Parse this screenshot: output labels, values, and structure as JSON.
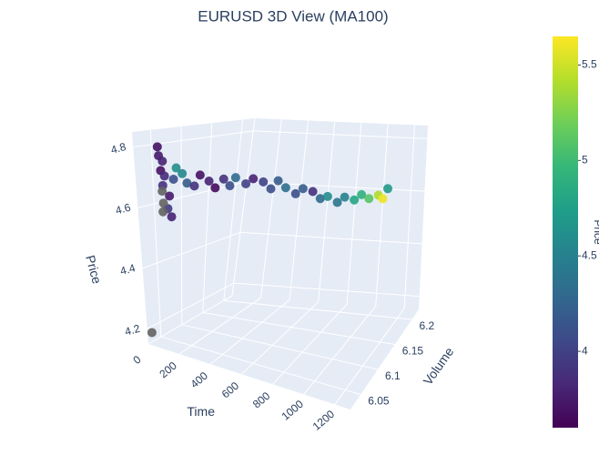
{
  "chart_data": {
    "type": "scatter3d",
    "title": "EURUSD 3D View (MA100)",
    "xlabel": "Time",
    "ylabel": "Volume",
    "zlabel": "Price",
    "xlim": [
      0,
      1300
    ],
    "xticks": [
      0,
      200,
      400,
      600,
      800,
      1000,
      1200
    ],
    "ylim": [
      6.02,
      6.22
    ],
    "yticks": [
      6.05,
      6.1,
      6.15,
      6.2
    ],
    "zlim": [
      4.15,
      4.85
    ],
    "zticks": [
      4.2,
      4.4,
      4.6,
      4.8
    ],
    "colorscale": "Viridis",
    "null_color": "#636363",
    "colorbar": {
      "title": "Price",
      "lim": [
        3.6,
        5.65
      ],
      "ticks": [
        4,
        4.5,
        5,
        5.5
      ]
    },
    "x": [
      0,
      5,
      10,
      15,
      20,
      25,
      30,
      35,
      40,
      60,
      80,
      100,
      130,
      160,
      200,
      240,
      280,
      320,
      360,
      400,
      450,
      500,
      550,
      600,
      650,
      700,
      750,
      800,
      850,
      900,
      950,
      1000,
      1050,
      1100,
      1150,
      1200,
      1250,
      1280,
      1300,
      20,
      25,
      20,
      0
    ],
    "y": [
      6.06,
      6.06,
      6.065,
      6.06,
      6.065,
      6.06,
      6.07,
      6.065,
      6.07,
      6.07,
      6.07,
      6.075,
      6.075,
      6.08,
      6.08,
      6.085,
      6.085,
      6.09,
      6.09,
      6.09,
      6.095,
      6.095,
      6.1,
      6.1,
      6.1,
      6.1,
      6.105,
      6.105,
      6.11,
      6.11,
      6.11,
      6.115,
      6.115,
      6.12,
      6.12,
      6.12,
      6.125,
      6.125,
      6.13,
      6.06,
      6.06,
      6.06,
      6.03
    ],
    "z": [
      4.79,
      4.76,
      4.74,
      4.71,
      4.69,
      4.66,
      4.62,
      4.58,
      4.55,
      4.68,
      4.72,
      4.7,
      4.67,
      4.66,
      4.7,
      4.68,
      4.66,
      4.69,
      4.67,
      4.7,
      4.68,
      4.7,
      4.69,
      4.67,
      4.7,
      4.68,
      4.66,
      4.68,
      4.67,
      4.65,
      4.66,
      4.64,
      4.66,
      4.65,
      4.67,
      4.66,
      4.67,
      4.66,
      4.69,
      4.64,
      4.6,
      4.57,
      4.18
    ],
    "color": [
      3.7,
      3.75,
      3.8,
      3.7,
      3.85,
      3.9,
      3.75,
      3.95,
      3.8,
      4.1,
      4.6,
      4.55,
      4.2,
      3.9,
      3.7,
      3.8,
      3.65,
      3.9,
      4.1,
      4.3,
      4.0,
      3.8,
      4.0,
      4.1,
      4.2,
      4.35,
      4.1,
      4.2,
      3.9,
      4.3,
      4.6,
      4.4,
      4.5,
      4.8,
      4.9,
      5.1,
      5.4,
      5.6,
      4.7,
      null,
      null,
      null,
      null
    ]
  }
}
